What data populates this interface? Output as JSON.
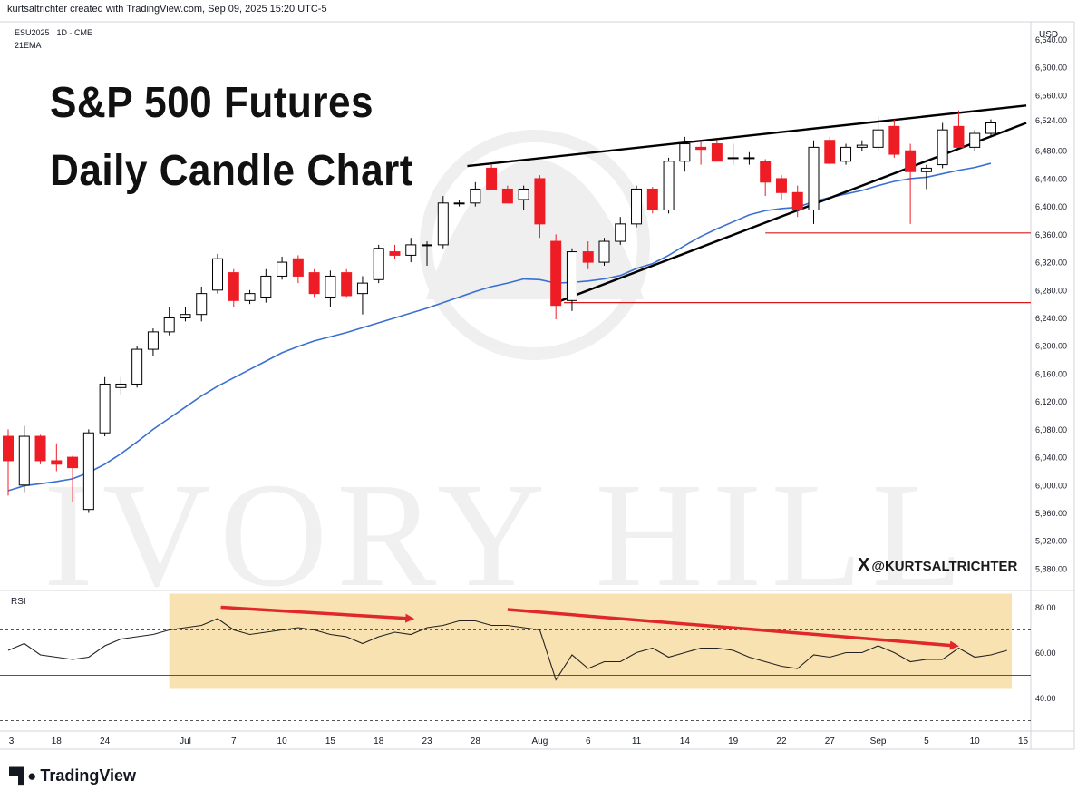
{
  "header": {
    "attribution": "kurtsaltrichter created with TradingView.com, Sep 09, 2025 15:20 UTC-5",
    "symbol": "ESU2025 · 1D · CME",
    "indicator": "21EMA",
    "currency": "USD"
  },
  "title": {
    "line1": "S&P 500 Futures",
    "line2": "Daily Candle Chart"
  },
  "watermark": "IVORY HILL",
  "social": {
    "logo": "X",
    "handle": "@KURTSALTRICHTER"
  },
  "footer": {
    "brand": "TradingView",
    "logo_icon": "tradingview-logo-icon"
  },
  "colors": {
    "up": "#ffffff",
    "down": "#ee1c25",
    "ema": "#3a6fd1",
    "trend": "#000000",
    "support": "#d81b1b",
    "rsi_zone": "#f8dfa8",
    "arrow": "#e0282a"
  },
  "chart_data": [
    {
      "type": "candlestick",
      "title": "S&P 500 Futures Daily Candle Chart",
      "ylim": [
        5850,
        6660
      ],
      "y_ticks": [
        5880,
        5920,
        5960,
        6000,
        6040,
        6080,
        6120,
        6160,
        6200,
        6240,
        6280,
        6320,
        6360,
        6400,
        6440,
        6480,
        6524,
        6560,
        6600,
        6640
      ],
      "y_tick_labels": [
        "5,880.00",
        "5,920.00",
        "5,960.00",
        "6,000.00",
        "6,040.00",
        "6,080.00",
        "6,120.00",
        "6,160.00",
        "6,200.00",
        "6,240.00",
        "6,280.00",
        "6,320.00",
        "6,360.00",
        "6,400.00",
        "6,440.00",
        "6,480.00",
        "6,524.00",
        "6,560.00",
        "6,600.00",
        "6,640.00"
      ],
      "x_tick_labels": [
        {
          "label": "3",
          "slot": 0.2
        },
        {
          "label": "18",
          "slot": 3
        },
        {
          "label": "24",
          "slot": 6
        },
        {
          "label": "Jul",
          "slot": 11
        },
        {
          "label": "7",
          "slot": 14
        },
        {
          "label": "10",
          "slot": 17
        },
        {
          "label": "15",
          "slot": 20
        },
        {
          "label": "18",
          "slot": 23
        },
        {
          "label": "23",
          "slot": 26
        },
        {
          "label": "28",
          "slot": 29
        },
        {
          "label": "Aug",
          "slot": 33
        },
        {
          "label": "6",
          "slot": 36
        },
        {
          "label": "11",
          "slot": 39
        },
        {
          "label": "14",
          "slot": 42
        },
        {
          "label": "19",
          "slot": 45
        },
        {
          "label": "22",
          "slot": 48
        },
        {
          "label": "27",
          "slot": 51
        },
        {
          "label": "Sep",
          "slot": 54
        },
        {
          "label": "5",
          "slot": 57
        },
        {
          "label": "10",
          "slot": 60
        },
        {
          "label": "15",
          "slot": 63
        }
      ],
      "candles": [
        {
          "o": 6070,
          "h": 6080,
          "l": 5985,
          "c": 6035
        },
        {
          "o": 6000,
          "h": 6085,
          "l": 5990,
          "c": 6070
        },
        {
          "o": 6070,
          "h": 6072,
          "l": 6030,
          "c": 6035
        },
        {
          "o": 6035,
          "h": 6060,
          "l": 6020,
          "c": 6030
        },
        {
          "o": 6040,
          "h": 6042,
          "l": 5975,
          "c": 6025
        },
        {
          "o": 5965,
          "h": 6080,
          "l": 5960,
          "c": 6075
        },
        {
          "o": 6075,
          "h": 6155,
          "l": 6070,
          "c": 6145
        },
        {
          "o": 6140,
          "h": 6155,
          "l": 6130,
          "c": 6145
        },
        {
          "o": 6145,
          "h": 6200,
          "l": 6140,
          "c": 6195
        },
        {
          "o": 6195,
          "h": 6225,
          "l": 6185,
          "c": 6220
        },
        {
          "o": 6220,
          "h": 6255,
          "l": 6215,
          "c": 6240
        },
        {
          "o": 6240,
          "h": 6255,
          "l": 6235,
          "c": 6245
        },
        {
          "o": 6245,
          "h": 6285,
          "l": 6235,
          "c": 6275
        },
        {
          "o": 6280,
          "h": 6332,
          "l": 6275,
          "c": 6325
        },
        {
          "o": 6305,
          "h": 6310,
          "l": 6255,
          "c": 6265
        },
        {
          "o": 6265,
          "h": 6280,
          "l": 6260,
          "c": 6275
        },
        {
          "o": 6270,
          "h": 6310,
          "l": 6262,
          "c": 6300
        },
        {
          "o": 6300,
          "h": 6328,
          "l": 6295,
          "c": 6320
        },
        {
          "o": 6325,
          "h": 6330,
          "l": 6290,
          "c": 6300
        },
        {
          "o": 6305,
          "h": 6310,
          "l": 6270,
          "c": 6275
        },
        {
          "o": 6270,
          "h": 6308,
          "l": 6255,
          "c": 6300
        },
        {
          "o": 6305,
          "h": 6310,
          "l": 6270,
          "c": 6272
        },
        {
          "o": 6275,
          "h": 6300,
          "l": 6245,
          "c": 6290
        },
        {
          "o": 6295,
          "h": 6345,
          "l": 6290,
          "c": 6340
        },
        {
          "o": 6335,
          "h": 6345,
          "l": 6325,
          "c": 6330
        },
        {
          "o": 6330,
          "h": 6355,
          "l": 6320,
          "c": 6345
        },
        {
          "o": 6345,
          "h": 6350,
          "l": 6315,
          "c": 6345
        },
        {
          "o": 6345,
          "h": 6415,
          "l": 6340,
          "c": 6405
        },
        {
          "o": 6405,
          "h": 6410,
          "l": 6400,
          "c": 6405
        },
        {
          "o": 6405,
          "h": 6435,
          "l": 6400,
          "c": 6425
        },
        {
          "o": 6455,
          "h": 6460,
          "l": 6425,
          "c": 6425
        },
        {
          "o": 6425,
          "h": 6430,
          "l": 6405,
          "c": 6405
        },
        {
          "o": 6410,
          "h": 6430,
          "l": 6395,
          "c": 6425
        },
        {
          "o": 6440,
          "h": 6445,
          "l": 6355,
          "c": 6375
        },
        {
          "o": 6350,
          "h": 6360,
          "l": 6238,
          "c": 6258
        },
        {
          "o": 6265,
          "h": 6340,
          "l": 6250,
          "c": 6335
        },
        {
          "o": 6335,
          "h": 6350,
          "l": 6310,
          "c": 6320
        },
        {
          "o": 6320,
          "h": 6355,
          "l": 6315,
          "c": 6350
        },
        {
          "o": 6350,
          "h": 6385,
          "l": 6345,
          "c": 6375
        },
        {
          "o": 6375,
          "h": 6430,
          "l": 6370,
          "c": 6425
        },
        {
          "o": 6425,
          "h": 6428,
          "l": 6390,
          "c": 6395
        },
        {
          "o": 6395,
          "h": 6470,
          "l": 6390,
          "c": 6465
        },
        {
          "o": 6465,
          "h": 6500,
          "l": 6450,
          "c": 6490
        },
        {
          "o": 6485,
          "h": 6495,
          "l": 6460,
          "c": 6482
        },
        {
          "o": 6490,
          "h": 6495,
          "l": 6465,
          "c": 6465
        },
        {
          "o": 6470,
          "h": 6490,
          "l": 6460,
          "c": 6470
        },
        {
          "o": 6470,
          "h": 6478,
          "l": 6460,
          "c": 6470
        },
        {
          "o": 6465,
          "h": 6468,
          "l": 6415,
          "c": 6435
        },
        {
          "o": 6440,
          "h": 6445,
          "l": 6410,
          "c": 6420
        },
        {
          "o": 6420,
          "h": 6430,
          "l": 6385,
          "c": 6395
        },
        {
          "o": 6395,
          "h": 6495,
          "l": 6375,
          "c": 6485
        },
        {
          "o": 6495,
          "h": 6500,
          "l": 6460,
          "c": 6462
        },
        {
          "o": 6465,
          "h": 6490,
          "l": 6460,
          "c": 6485
        },
        {
          "o": 6485,
          "h": 6495,
          "l": 6480,
          "c": 6488
        },
        {
          "o": 6485,
          "h": 6530,
          "l": 6480,
          "c": 6510
        },
        {
          "o": 6515,
          "h": 6525,
          "l": 6470,
          "c": 6475
        },
        {
          "o": 6480,
          "h": 6490,
          "l": 6375,
          "c": 6450
        },
        {
          "o": 6450,
          "h": 6460,
          "l": 6425,
          "c": 6455
        },
        {
          "o": 6460,
          "h": 6520,
          "l": 6455,
          "c": 6510
        },
        {
          "o": 6515,
          "h": 6538,
          "l": 6485,
          "c": 6485
        },
        {
          "o": 6485,
          "h": 6510,
          "l": 6480,
          "c": 6505
        },
        {
          "o": 6505,
          "h": 6525,
          "l": 6500,
          "c": 6520
        }
      ],
      "ema21": [
        5992,
        5999,
        6002,
        6005,
        6009,
        6018,
        6030,
        6045,
        6062,
        6080,
        6096,
        6112,
        6128,
        6142,
        6154,
        6166,
        6178,
        6190,
        6199,
        6207,
        6213,
        6219,
        6226,
        6233,
        6240,
        6247,
        6254,
        6262,
        6270,
        6278,
        6285,
        6290,
        6296,
        6295,
        6290,
        6291,
        6293,
        6296,
        6301,
        6311,
        6318,
        6330,
        6344,
        6357,
        6368,
        6378,
        6388,
        6394,
        6397,
        6399,
        6407,
        6413,
        6418,
        6423,
        6430,
        6436,
        6440,
        6442,
        6447,
        6452,
        6456,
        6462
      ],
      "trendlines": [
        {
          "from": [
            28.5,
            6458
          ],
          "to": [
            63.2,
            6545
          ],
          "color": "trend"
        },
        {
          "from": [
            34.0,
            6262
          ],
          "to": [
            63.2,
            6520
          ],
          "color": "trend"
        }
      ],
      "horizontal_levels": [
        {
          "price": 6362,
          "from_slot": 47,
          "color": "support"
        },
        {
          "price": 6262,
          "from_slot": 34.5,
          "color": "support"
        }
      ]
    },
    {
      "type": "line",
      "title": "RSI",
      "ylim": [
        27,
        87
      ],
      "y_ticks": [
        40,
        60,
        80
      ],
      "y_tick_labels": [
        "40.00",
        "60.00",
        "80.00"
      ],
      "bands": [
        70,
        50,
        30
      ],
      "values": [
        61,
        64,
        59,
        58,
        57,
        58,
        63,
        66,
        67,
        68,
        70,
        71,
        72,
        75,
        70,
        68,
        69,
        70,
        71,
        70,
        68,
        67,
        64,
        67,
        69,
        68,
        71,
        72,
        74,
        74,
        72,
        72,
        71,
        70,
        48,
        59,
        53,
        56,
        56,
        60,
        62,
        58,
        60,
        62,
        62,
        61,
        58,
        56,
        54,
        53,
        59,
        58,
        60,
        60,
        63,
        60,
        56,
        57,
        57,
        62,
        58,
        59,
        61
      ],
      "highlight_zone": {
        "from_slot": 10,
        "to_slot": 62.3,
        "from_value": 44,
        "to_value": 86
      },
      "arrows": [
        {
          "from": [
            13.2,
            80
          ],
          "to": [
            25,
            75
          ]
        },
        {
          "from": [
            31,
            79
          ],
          "to": [
            58.8,
            63
          ]
        }
      ]
    }
  ]
}
